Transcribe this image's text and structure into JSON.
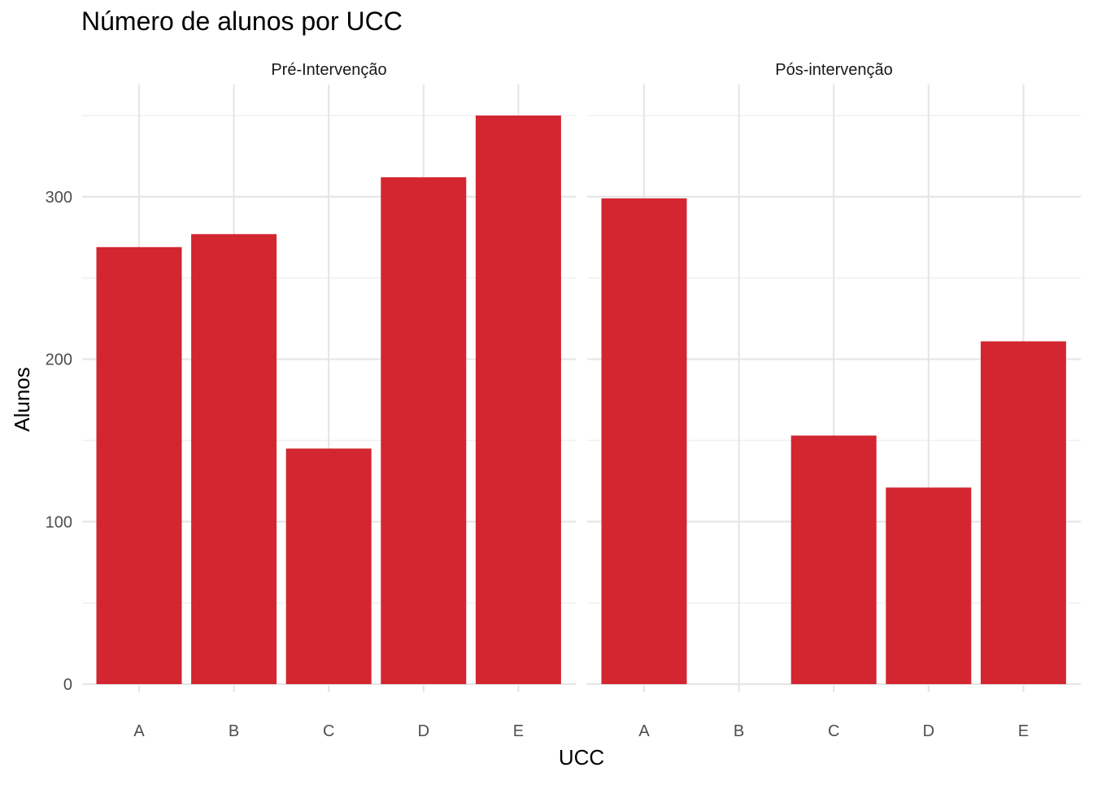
{
  "chart_data": {
    "type": "bar",
    "title": "Número de alunos por UCC",
    "xlabel": "UCC",
    "ylabel": "Alunos",
    "ylim": [
      0,
      350
    ],
    "yticks": [
      0,
      100,
      200,
      300
    ],
    "grid": true,
    "bar_color": "#D32630",
    "categories": [
      "A",
      "B",
      "C",
      "D",
      "E"
    ],
    "facets": [
      {
        "label": "Pré-Intervenção",
        "values": [
          269,
          277,
          145,
          312,
          350
        ]
      },
      {
        "label": "Pós-intervenção",
        "values": [
          299,
          0,
          153,
          121,
          211
        ]
      }
    ]
  }
}
